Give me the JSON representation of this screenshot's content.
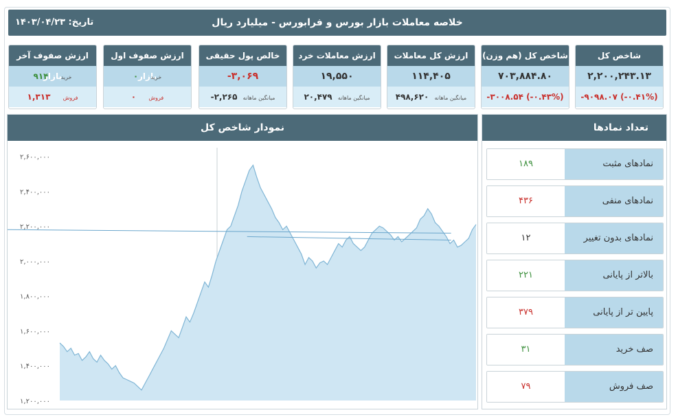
{
  "header": {
    "title": "خلاصه معاملات بازار بورس و فرابورس - میلیارد ریال",
    "date_label": "تاریخ:",
    "date": "۱۴۰۳/۰۴/۲۳"
  },
  "cards": [
    {
      "title": "شاخص کل",
      "value": "۲,۲۰۰,۲۴۳.۱۳",
      "sub": "-۹۰۹۸.۰۷ (-۰.۴۱%)"
    },
    {
      "title": "شاخص کل (هم وزن)",
      "value": "۷۰۳,۸۸۴.۸۰",
      "sub": "-۳۰۰۸.۵۴ (-۰.۴۳%)"
    },
    {
      "title": "ارزش کل معاملات",
      "value": "۱۱۴,۴۰۵",
      "sub_label": "میانگین ماهانه",
      "sub": "۴۹۸,۶۲۰"
    },
    {
      "title": "ارزش معاملات خرد",
      "value": "۱۹,۵۵۰",
      "sub_label": "میانگین ماهانه",
      "sub": "۲۰,۴۷۹"
    },
    {
      "title": "خالص پول حقیقی",
      "value": "-۳,۰۶۹",
      "sub_label": "میانگین ماهانه",
      "sub": "-۲,۲۶۵"
    },
    {
      "title": "ارزش صفوف اول بازار",
      "buy_label": "خرید",
      "buy": "۰",
      "sell_label": "فروش",
      "sell": "۰"
    },
    {
      "title": "ارزش صفوف آخر بازار",
      "buy_label": "خرید",
      "buy": "۹۱۴",
      "sell_label": "فروش",
      "sell": "۱,۳۱۳"
    }
  ],
  "chart_panel": {
    "title": "نمودار شاخص کل"
  },
  "counts_panel": {
    "title": "تعداد نمادها",
    "rows": [
      {
        "label": "نمادهای مثبت",
        "value": "۱۸۹",
        "color": "#3c8f3c"
      },
      {
        "label": "نمادهای منفی",
        "value": "۴۳۶",
        "color": "#c9302c"
      },
      {
        "label": "نمادهای بدون تغییر",
        "value": "۱۲",
        "color": "#333333"
      },
      {
        "label": "بالاتر از پایانی",
        "value": "۲۲۱",
        "color": "#3c8f3c"
      },
      {
        "label": "پایین تر از پایانی",
        "value": "۳۷۹",
        "color": "#c9302c"
      },
      {
        "label": "صف خرید",
        "value": "۳۱",
        "color": "#3c8f3c"
      },
      {
        "label": "صف فروش",
        "value": "۷۹",
        "color": "#c9302c"
      }
    ]
  },
  "chart_data": {
    "type": "area",
    "title": "نمودار شاخص کل",
    "ylim": [
      1200000,
      2650000
    ],
    "yticks": [
      1200000,
      1400000,
      1600000,
      1800000,
      2000000,
      2200000,
      2400000,
      2600000
    ],
    "ytick_labels": [
      "۱,۲۰۰,۰۰۰",
      "۱,۴۰۰,۰۰۰",
      "۱,۶۰۰,۰۰۰",
      "۱,۸۰۰,۰۰۰",
      "۲,۰۰۰,۰۰۰",
      "۲,۲۰۰,۰۰۰",
      "۲,۴۰۰,۰۰۰",
      "۲,۶۰۰,۰۰۰"
    ],
    "grid": false,
    "fill_color": "#cfe6f3",
    "line_color": "#7fb5d5",
    "values": [
      1530000,
      1510000,
      1480000,
      1500000,
      1460000,
      1470000,
      1430000,
      1450000,
      1480000,
      1440000,
      1420000,
      1460000,
      1430000,
      1410000,
      1380000,
      1400000,
      1360000,
      1330000,
      1320000,
      1310000,
      1300000,
      1280000,
      1260000,
      1300000,
      1340000,
      1380000,
      1420000,
      1460000,
      1500000,
      1550000,
      1600000,
      1580000,
      1560000,
      1620000,
      1680000,
      1650000,
      1700000,
      1760000,
      1820000,
      1880000,
      1850000,
      1920000,
      2000000,
      2060000,
      2120000,
      2180000,
      2200000,
      2260000,
      2320000,
      2400000,
      2460000,
      2520000,
      2550000,
      2480000,
      2420000,
      2380000,
      2340000,
      2300000,
      2250000,
      2220000,
      2180000,
      2200000,
      2160000,
      2120000,
      2080000,
      2040000,
      1980000,
      2020000,
      2000000,
      1960000,
      1990000,
      2000000,
      1980000,
      2020000,
      2060000,
      2100000,
      2080000,
      2120000,
      2140000,
      2100000,
      2080000,
      2060000,
      2080000,
      2120000,
      2160000,
      2180000,
      2200000,
      2190000,
      2170000,
      2150000,
      2120000,
      2140000,
      2110000,
      2130000,
      2150000,
      2170000,
      2190000,
      2240000,
      2260000,
      2300000,
      2270000,
      2220000,
      2200000,
      2170000,
      2140000,
      2100000,
      2120000,
      2080000,
      2090000,
      2110000,
      2130000,
      2180000,
      2210000
    ],
    "reference": {
      "start": 2180000,
      "mid_x_frac": 0.94,
      "mid": 2160000,
      "end": 2120000
    }
  }
}
